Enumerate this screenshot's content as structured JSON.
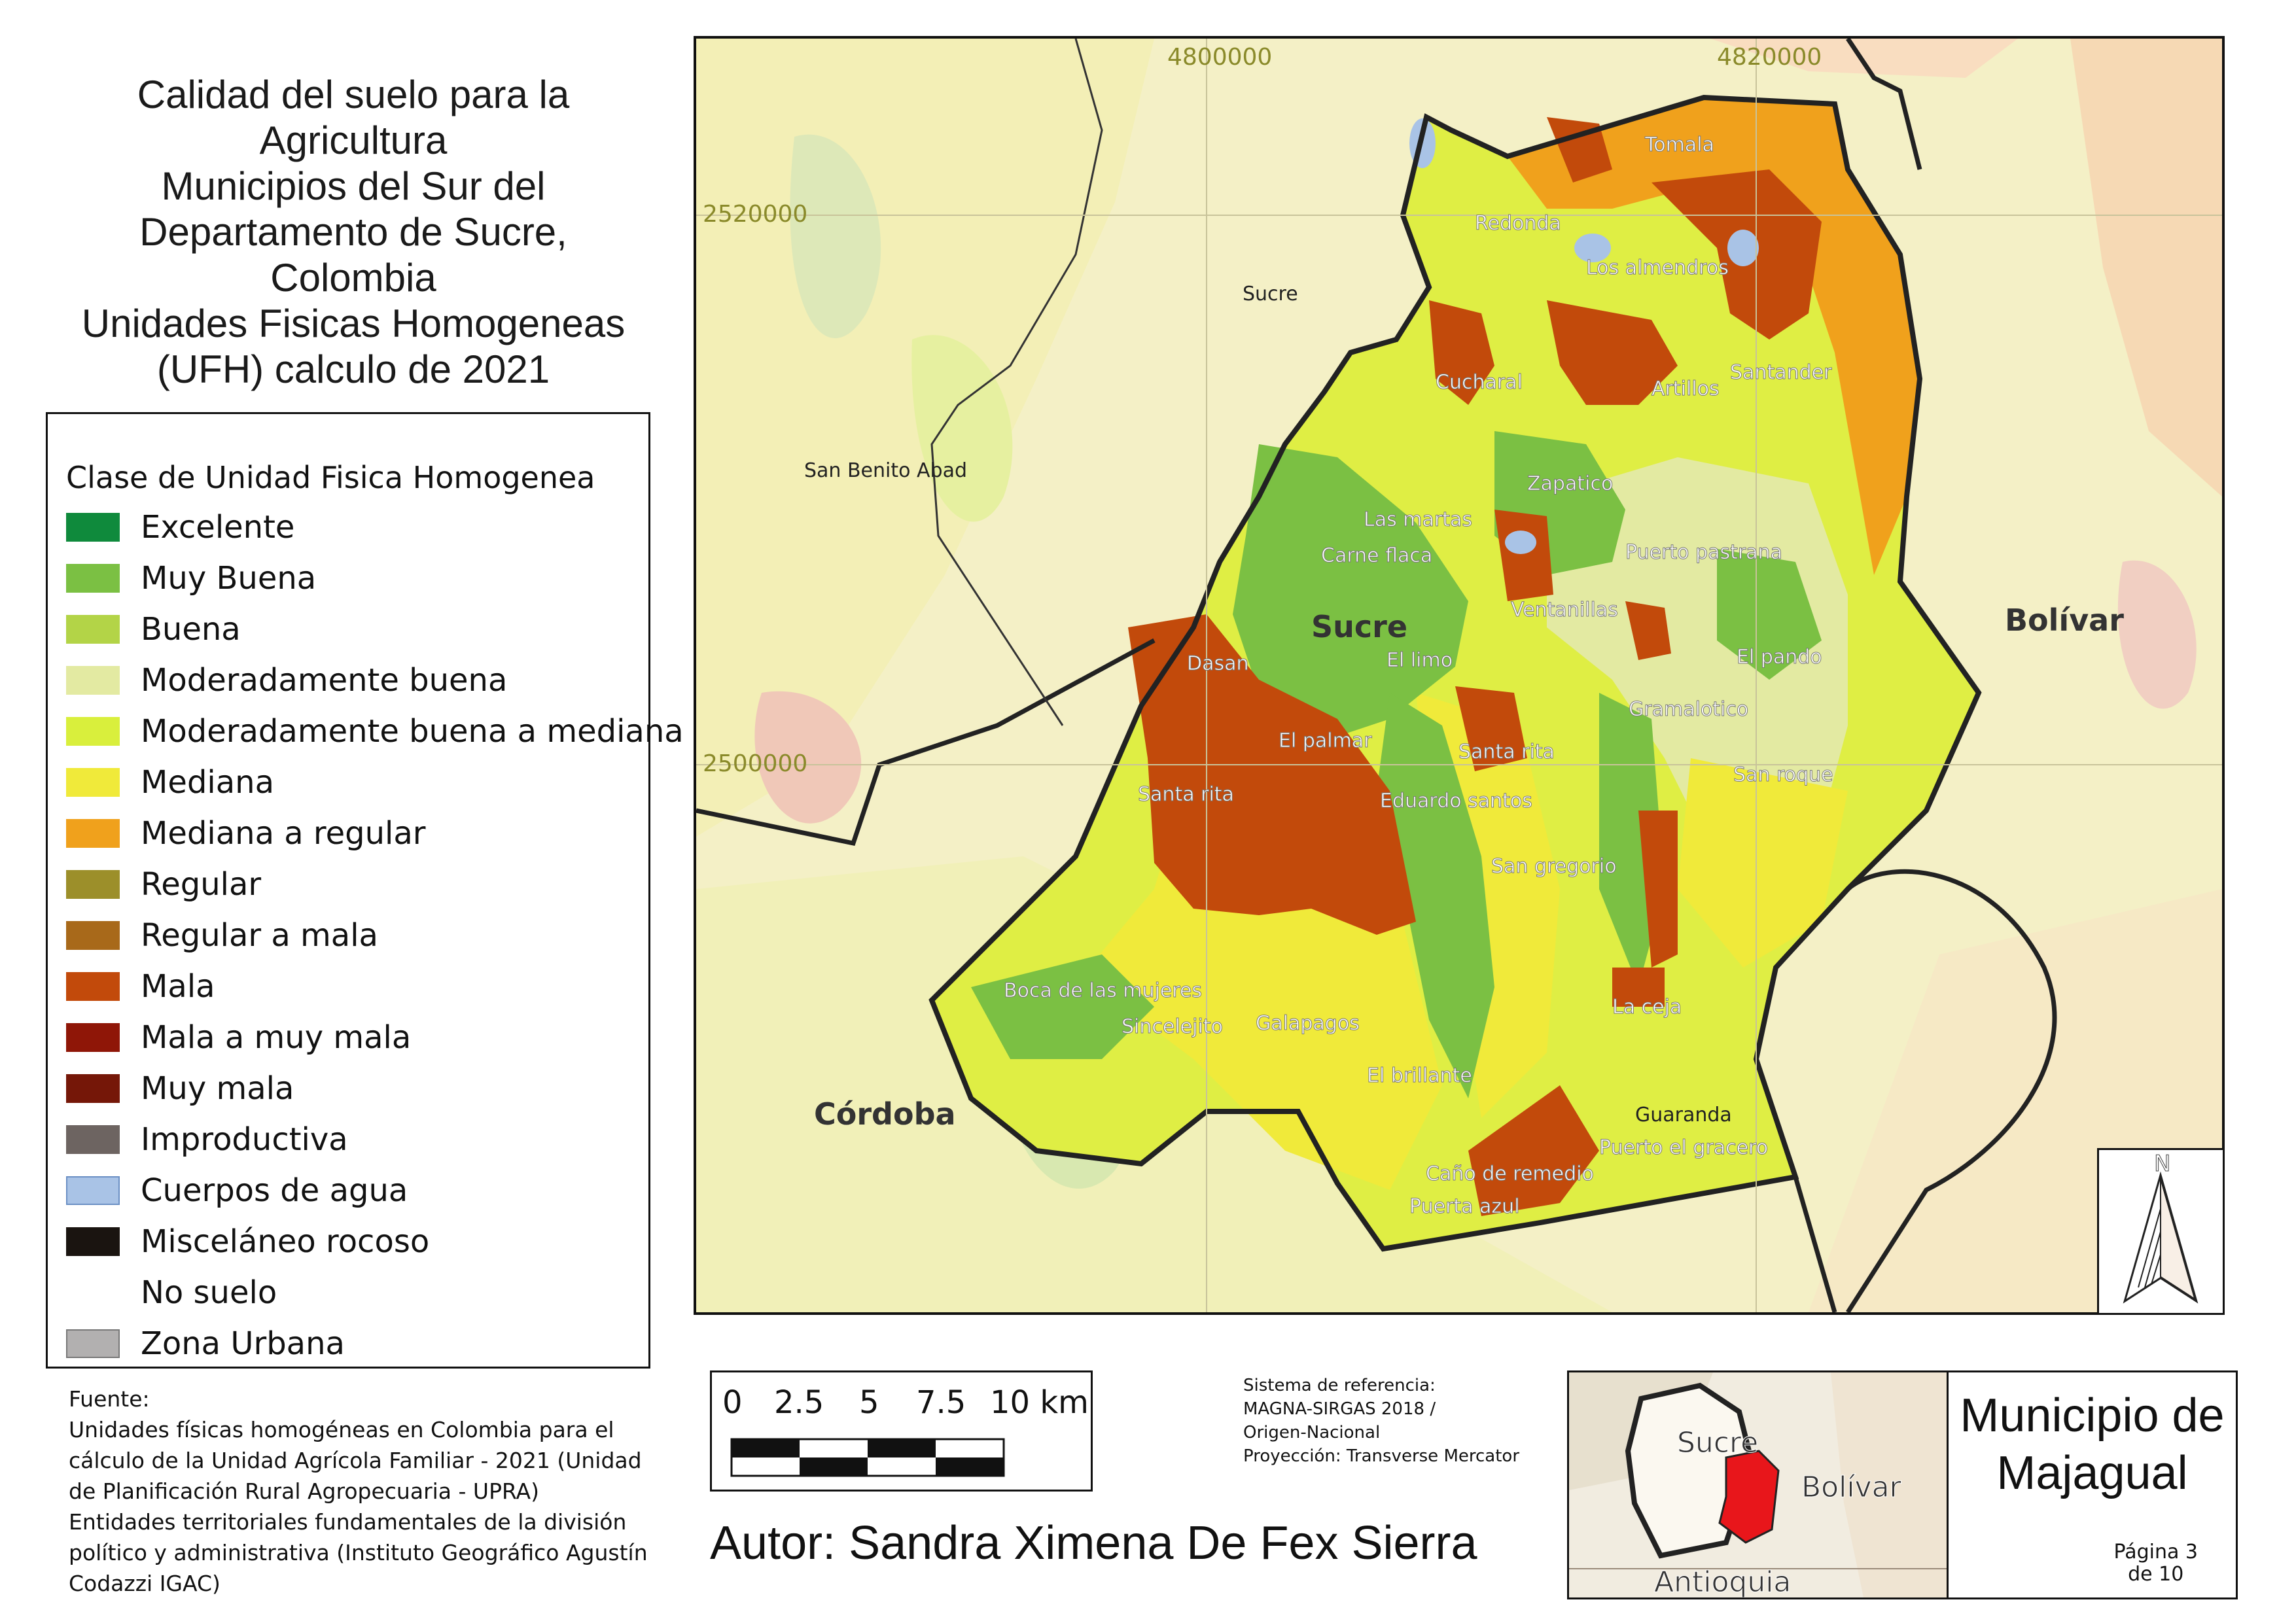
{
  "title_lines": [
    "Calidad del suelo para la",
    "Agricultura",
    "Municipios del Sur del",
    "Departamento de Sucre,",
    "Colombia",
    "Unidades Fisicas Homogeneas",
    "(UFH) calculo de 2021"
  ],
  "legend": {
    "title": "Clase de Unidad Fisica Homogenea",
    "items": [
      {
        "label": "Excelente",
        "color": "#0f8a3c"
      },
      {
        "label": "Muy Buena",
        "color": "#7bc043"
      },
      {
        "label": "Buena",
        "color": "#b3d447"
      },
      {
        "label": "Moderadamente buena",
        "color": "#e3eaa2"
      },
      {
        "label": "Moderadamente buena a mediana",
        "color": "#d9ef3c"
      },
      {
        "label": "Mediana",
        "color": "#f0ea3a"
      },
      {
        "label": "Mediana a regular",
        "color": "#f0a11c"
      },
      {
        "label": "Regular",
        "color": "#9c8f2a"
      },
      {
        "label": "Regular a mala",
        "color": "#a8691a"
      },
      {
        "label": "Mala",
        "color": "#c24a0b"
      },
      {
        "label": "Mala a muy mala",
        "color": "#8f1607"
      },
      {
        "label": "Muy mala",
        "color": "#751708"
      },
      {
        "label": "Improductiva",
        "color": "#6d6461"
      },
      {
        "label": "Cuerpos de agua",
        "color": "#a9c3e6"
      },
      {
        "label": "Misceláneo rocoso",
        "color": "#1a1410"
      },
      {
        "label": "No suelo",
        "color": "#ffffff"
      },
      {
        "label": "Zona Urbana",
        "color": "#b2b0b0"
      }
    ]
  },
  "source_lines": [
    "Fuente:",
    "Unidades físicas homogéneas en Colombia para el",
    "cálculo de la Unidad Agrícola Familiar - 2021 (Unidad",
    "de Planificación Rural Agropecuaria - UPRA)",
    "Entidades territoriales fundamentales de la división",
    "político y administrativa (Instituto Geográfico Agustín",
    "Codazzi IGAC)"
  ],
  "map": {
    "grid_labels": [
      "4800000",
      "4820000",
      "2520000",
      "2500000"
    ],
    "regions": [
      "Sucre",
      "Bolívar",
      "Córdoba"
    ],
    "places": [
      "Tomala",
      "Redonda",
      "Los almendros",
      "Sucre",
      "Santander",
      "Cucharal",
      "Artillos",
      "San Benito Abad",
      "Zapatico",
      "Las martas",
      "Carne flaca",
      "Puerto pastrana",
      "Ventanillas",
      "Dasan",
      "El limo",
      "El pando",
      "Gramalotico",
      "El palmar",
      "Santa rita",
      "San roque",
      "Santa rita",
      "Eduardo santos",
      "San gregorio",
      "Boca de las mujeres",
      "Sincelejito",
      "Galapagos",
      "La ceja",
      "El brillante",
      "Guaranda",
      "Puerto el gracero",
      "Caño de remedio",
      "Puerta azul"
    ],
    "north_label": "N"
  },
  "scale": {
    "labels": [
      "0",
      "2.5",
      "5",
      "7.5",
      "10 km"
    ]
  },
  "crs_lines": [
    "Sistema de referencia:",
    "MAGNA-SIRGAS 2018 /",
    "Origen-Nacional",
    "Proyección: Transverse Mercator"
  ],
  "author": "Autor: Sandra Ximena De Fex Sierra",
  "inset": {
    "labels": [
      "Sucre",
      "Bolívar",
      "Antioquia"
    ],
    "highlight_color": "#e8161b"
  },
  "municipality_title": [
    "Municipio de",
    "Majagual"
  ],
  "page": [
    "Página 3",
    "de 10"
  ]
}
